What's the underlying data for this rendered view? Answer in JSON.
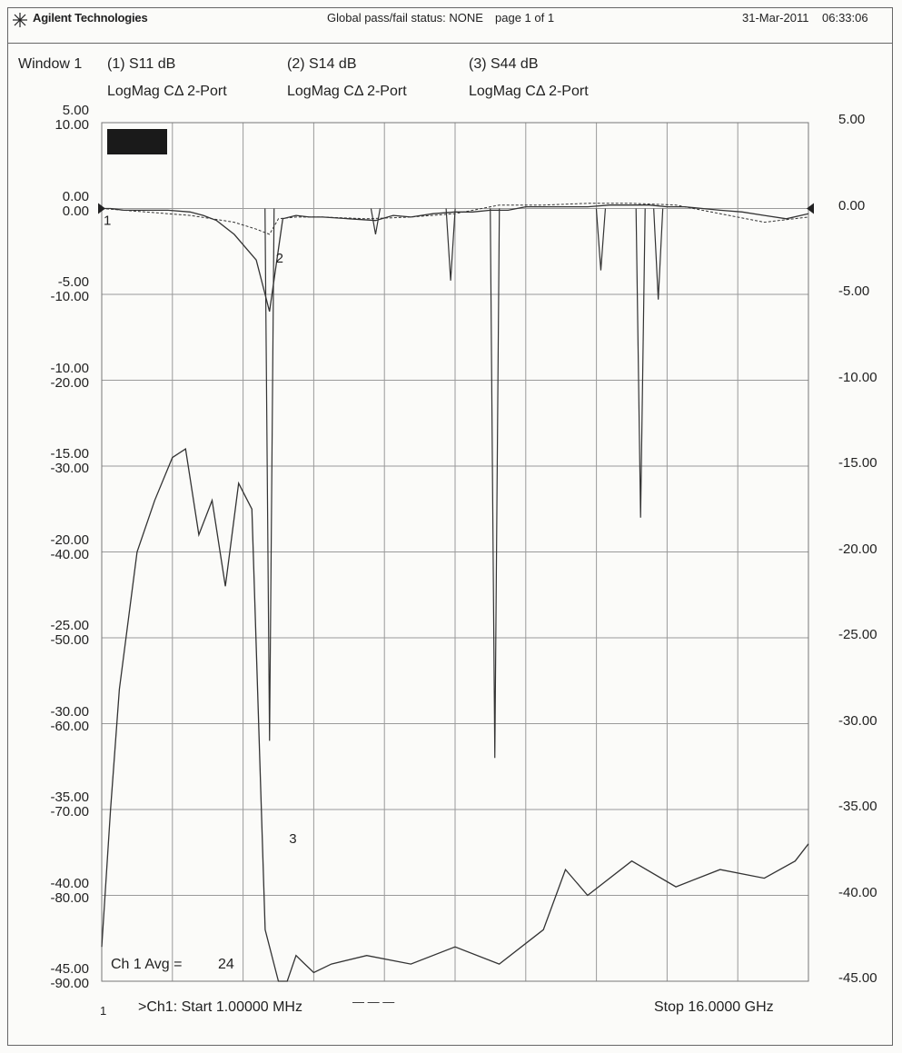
{
  "header": {
    "brand": "Agilent Technologies",
    "status": "Global pass/fail status: NONE",
    "page": "page 1 of 1",
    "date": "31-Mar-2011",
    "time": "06:33:06"
  },
  "window_label": "Window 1",
  "traces": [
    {
      "id": "(1) S11 dB",
      "format": "LogMag CΔ 2-Port"
    },
    {
      "id": "(2) S14 dB",
      "format": "LogMag CΔ 2-Port"
    },
    {
      "id": "(3) S44 dB",
      "format": "LogMag CΔ 2-Port"
    }
  ],
  "left_ticks_a": [
    "5.00",
    "0.00",
    "-5.00",
    "-10.00",
    "-15.00",
    "-20.00",
    "-25.00",
    "-30.00",
    "-35.00",
    "-40.00",
    "-45.00"
  ],
  "left_ticks_b": [
    "10.00",
    "0.00",
    "-10.00",
    "-20.00",
    "-30.00",
    "-40.00",
    "-50.00",
    "-60.00",
    "-70.00",
    "-80.00",
    "-90.00"
  ],
  "right_ticks": [
    "5.00",
    "0.00",
    "-5.00",
    "-10.00",
    "-15.00",
    "-20.00",
    "-25.00",
    "-30.00",
    "-35.00",
    "-40.00",
    "-45.00"
  ],
  "footer": {
    "avg": "Ch 1 Avg =",
    "avg_value": "24",
    "start": ">Ch1: Start  1.00000 MHz",
    "stop": "Stop  16.0000 GHz",
    "axis_marker": "1"
  },
  "markers": [
    "1",
    "2",
    "3"
  ],
  "colors": {
    "trace": "#333333",
    "grid": "#9a9a9a",
    "background": "#fbfbf9"
  },
  "chart_data": {
    "type": "line",
    "x_range_ghz": [
      0.001,
      16.0
    ],
    "y_range_db": [
      -45,
      5
    ],
    "grid": true,
    "series": [
      {
        "name": "(1) S11 dB",
        "x_ghz": [
          0.001,
          0.2,
          0.5,
          1.0,
          1.5,
          2.0,
          2.3,
          2.6,
          3.0,
          3.5,
          3.8,
          4.1,
          4.4,
          4.7,
          5.0,
          5.6,
          6.2,
          6.6,
          7.0,
          7.5,
          8.0,
          8.4,
          8.8,
          9.2,
          9.6,
          10.0,
          10.5,
          11.0,
          11.5,
          12.0,
          12.4,
          12.8,
          13.2,
          13.6,
          14.0,
          14.5,
          15.0,
          15.5,
          16.0
        ],
        "y_db": [
          0.0,
          0.0,
          -0.1,
          -0.1,
          -0.1,
          -0.2,
          -0.4,
          -0.7,
          -1.5,
          -3.0,
          -6.0,
          -0.6,
          -0.4,
          -0.5,
          -0.5,
          -0.6,
          -0.7,
          -0.4,
          -0.5,
          -0.3,
          -0.2,
          -0.2,
          -0.1,
          -0.1,
          0.1,
          0.1,
          0.1,
          0.1,
          0.2,
          0.2,
          0.2,
          0.1,
          0.1,
          0.0,
          -0.1,
          -0.2,
          -0.4,
          -0.6,
          -0.3
        ]
      },
      {
        "name": "(2) S14 dB",
        "x_ghz": [
          0.001,
          0.2,
          0.4,
          0.8,
          1.2,
          1.6,
          1.9,
          2.2,
          2.5,
          2.8,
          3.1,
          3.4,
          3.7,
          4.0,
          4.2,
          4.4,
          4.6,
          4.8,
          5.2,
          6.0,
          7.0,
          8.0,
          9.0,
          10.0,
          10.5,
          11.0,
          12.0,
          13.0,
          14.0,
          15.0,
          15.7,
          16.0
        ],
        "y_db": [
          -43.0,
          -35.0,
          -28.0,
          -20.0,
          -17.0,
          -14.5,
          -14.0,
          -19.0,
          -17.0,
          -22.0,
          -16.0,
          -17.5,
          -42.0,
          -45.0,
          -45.0,
          -43.5,
          -44.0,
          -44.5,
          -44.0,
          -43.5,
          -44.0,
          -43.0,
          -44.0,
          -42.0,
          -38.5,
          -40.0,
          -38.0,
          -39.5,
          -38.5,
          -39.0,
          -38.0,
          -37.0
        ]
      },
      {
        "name": "(3) S44 dB",
        "x_ghz": [
          0.001,
          0.5,
          1.0,
          1.5,
          2.0,
          2.5,
          3.0,
          3.5,
          3.8,
          4.0,
          4.4,
          5.0,
          6.0,
          7.0,
          8.0,
          9.0,
          10.0,
          11.0,
          12.0,
          13.0,
          14.0,
          15.0,
          16.0
        ],
        "y_db": [
          0.0,
          -0.1,
          -0.2,
          -0.3,
          -0.4,
          -0.6,
          -0.8,
          -1.2,
          -1.5,
          -0.6,
          -0.5,
          -0.5,
          -0.6,
          -0.5,
          -0.3,
          0.2,
          0.2,
          0.3,
          0.3,
          0.2,
          -0.3,
          -0.8,
          -0.5
        ]
      }
    ],
    "notches": [
      {
        "x_ghz": 3.8,
        "y_db": -31.0
      },
      {
        "x_ghz": 6.2,
        "y_db": -1.5
      },
      {
        "x_ghz": 7.9,
        "y_db": -4.2
      },
      {
        "x_ghz": 8.9,
        "y_db": -32.0
      },
      {
        "x_ghz": 11.3,
        "y_db": -3.6
      },
      {
        "x_ghz": 12.2,
        "y_db": -18.0
      },
      {
        "x_ghz": 12.6,
        "y_db": -5.3
      }
    ],
    "marker_points": [
      {
        "label": "1",
        "x_ghz": 0.001,
        "y_db": 0.0
      },
      {
        "label": "2",
        "x_ghz": 3.9,
        "y_db": -2.2
      },
      {
        "label": "3",
        "x_ghz": 4.2,
        "y_db": -36.0
      }
    ]
  }
}
